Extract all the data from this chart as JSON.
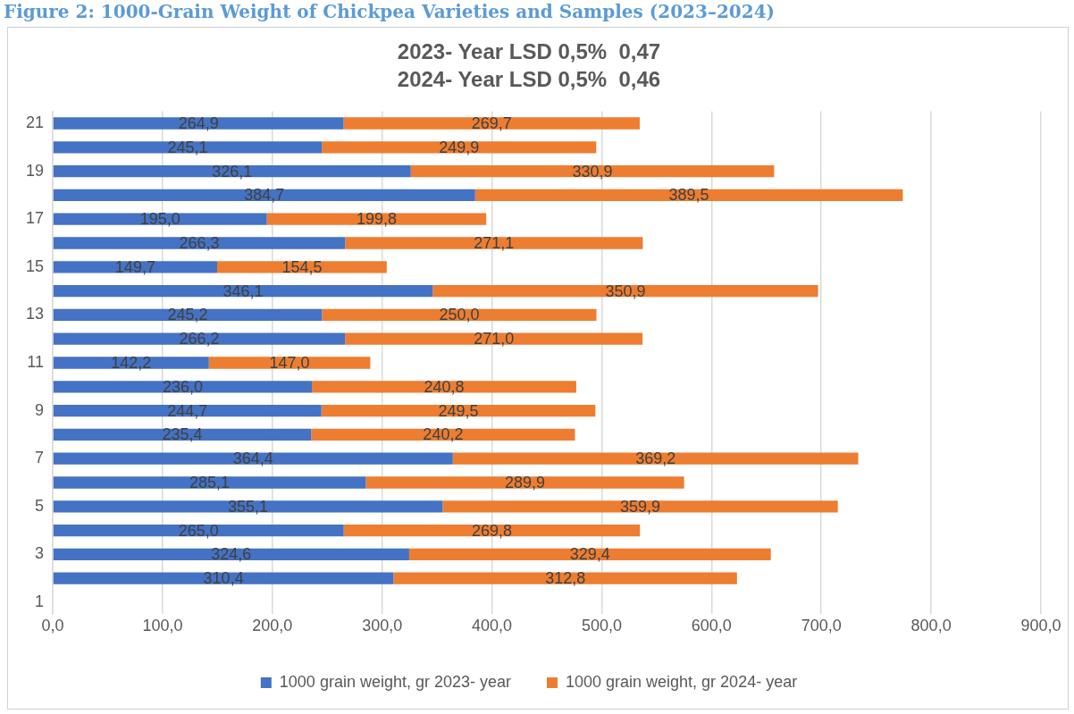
{
  "chart_data": {
    "type": "bar",
    "orientation": "horizontal",
    "stacked": true,
    "title": "2023- Year LSD 0,5%  0,47",
    "subtitle": "2024- Year LSD 0,5%  0,46",
    "annotations": [
      "Figure 2: 1000-Grain Weight of Chickpea Varieties and Samples (2023–2024)"
    ],
    "categories": [
      "21",
      null,
      "19",
      null,
      "17",
      null,
      "15",
      null,
      "13",
      null,
      "11",
      null,
      "9",
      null,
      "7",
      null,
      "5",
      null,
      "3",
      null,
      "1"
    ],
    "series": [
      {
        "name": "1000 grain weight, gr 2023- year",
        "color": "#4472c4",
        "values": [
          264.9,
          245.1,
          326.1,
          384.7,
          195.0,
          266.3,
          149.7,
          346.1,
          245.2,
          266.2,
          142.2,
          236.0,
          244.7,
          235.4,
          364.4,
          285.1,
          355.1,
          265.0,
          324.6,
          310.4,
          null
        ],
        "value_labels": [
          "264,9",
          "245,1",
          "326,1",
          "384,7",
          "195,0",
          "266,3",
          "149,7",
          "346,1",
          "245,2",
          "266,2",
          "142,2",
          "236,0",
          "244,7",
          "235,4",
          "364,4",
          "285,1",
          "355,1",
          "265,0",
          "324,6",
          "310,4",
          null
        ]
      },
      {
        "name": "1000 grain weight, gr 2024- year",
        "color": "#ed7d31",
        "values": [
          269.7,
          249.9,
          330.9,
          389.5,
          199.8,
          271.1,
          154.5,
          350.9,
          250.0,
          271.0,
          147.0,
          240.8,
          249.5,
          240.2,
          369.2,
          289.9,
          359.9,
          269.8,
          329.4,
          312.8,
          null
        ],
        "value_labels": [
          "269,7",
          "249,9",
          "330,9",
          "389,5",
          "199,8",
          "271,1",
          "154,5",
          "350,9",
          "250,0",
          "271,0",
          "147,0",
          "240,8",
          "249,5",
          "240,2",
          "369,2",
          "289,9",
          "359,9",
          "269,8",
          "329,4",
          "312,8",
          null
        ]
      }
    ],
    "xlim": [
      0,
      900
    ],
    "xticks": [
      {
        "value": 0,
        "label": "0,0"
      },
      {
        "value": 100,
        "label": "100,0"
      },
      {
        "value": 200,
        "label": "200,0"
      },
      {
        "value": 300,
        "label": "300,0"
      },
      {
        "value": 400,
        "label": "400,0"
      },
      {
        "value": 500,
        "label": "500,0"
      },
      {
        "value": 600,
        "label": "600,0"
      },
      {
        "value": 700,
        "label": "700,0"
      },
      {
        "value": 800,
        "label": "800,0"
      },
      {
        "value": 900,
        "label": "900,0"
      }
    ],
    "grid": "x",
    "legend": "bottom"
  }
}
